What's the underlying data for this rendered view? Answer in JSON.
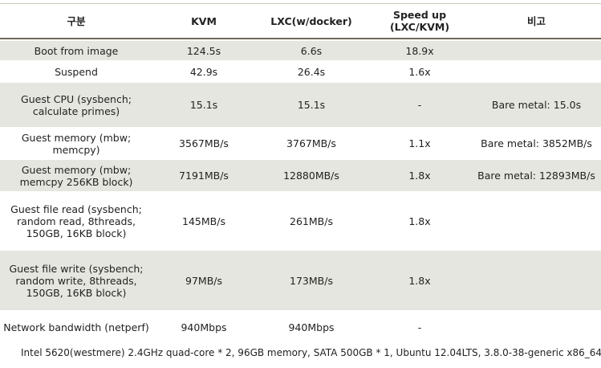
{
  "table": {
    "header": [
      "구분",
      "KVM",
      "LXC(w/docker)",
      "Speed up (LXC/KVM)",
      "비고"
    ],
    "rows": [
      [
        "Boot from image",
        "124.5s",
        "6.6s",
        "18.9x",
        null
      ],
      [
        "Suspend",
        "42.9s",
        "26.4s",
        "1.6x",
        null
      ],
      [
        "Guest CPU (sysbench; calculate primes)",
        "15.1s",
        "15.1s",
        "-",
        "Bare metal: 15.0s"
      ],
      [
        "Guest memory (mbw; memcpy)",
        "3567MB/s",
        "3767MB/s",
        "1.1x",
        "Bare metal: 3852MB/s"
      ],
      [
        "Guest memory (mbw; memcpy 256KB block)",
        "7191MB/s",
        "12880MB/s",
        "1.8x",
        "Bare metal: 12893MB/s"
      ],
      [
        "Guest file read (sysbench; random read, 8threads, 150GB, 16KB block)",
        "145MB/s",
        "261MB/s",
        "1.8x",
        null
      ],
      [
        "Guest file write (sysbench; random write, 8threads, 150GB, 16KB block)",
        "97MB/s",
        "173MB/s",
        "1.8x",
        null
      ],
      [
        "Network bandwidth (netperf)",
        "940Mbps",
        "940Mbps",
        "-",
        null
      ]
    ]
  },
  "footnote": "Intel 5620(westmere) 2.4GHz quad-core * 2, 96GB memory, SATA 500GB * 1, Ubuntu 12.04LTS, 3.8.0-38-generic x86_64"
}
